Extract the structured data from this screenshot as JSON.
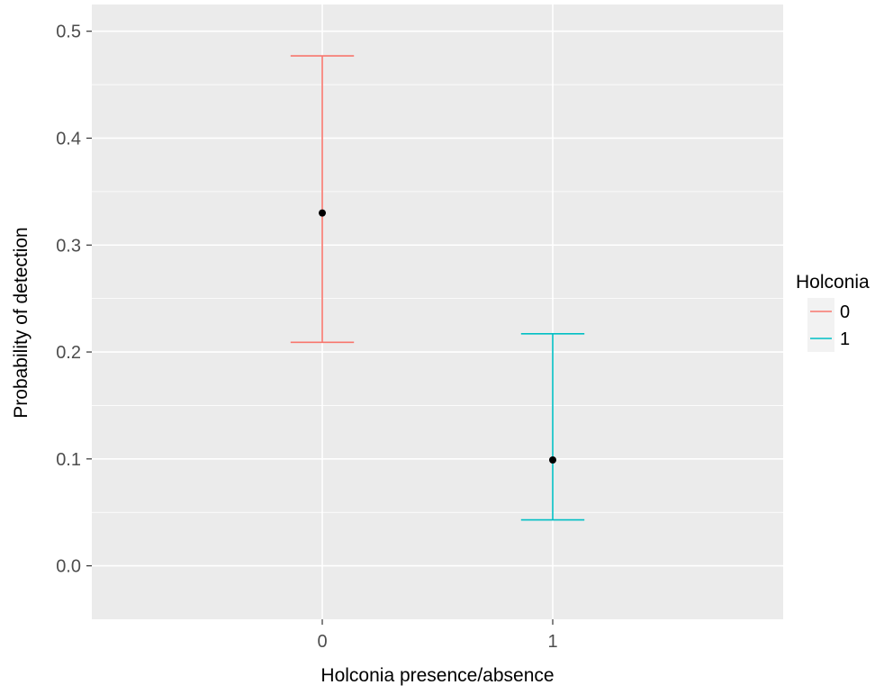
{
  "chart_data": {
    "type": "errorbar",
    "title": "",
    "xlabel": "Holconia presence/absence",
    "ylabel": "Probability of detection",
    "categories": [
      "0",
      "1"
    ],
    "ylim": [
      -0.05,
      0.525
    ],
    "yticks": [
      "0.0",
      "0.1",
      "0.2",
      "0.3",
      "0.4",
      "0.5"
    ],
    "grid": true,
    "series": [
      {
        "category": "0",
        "estimate": 0.33,
        "lower": 0.209,
        "upper": 0.477,
        "color": "#F8766D"
      },
      {
        "category": "1",
        "estimate": 0.099,
        "lower": 0.043,
        "upper": 0.217,
        "color": "#00BFC4"
      }
    ],
    "point_color": "#000000",
    "panel_background": "#EBEBEB",
    "gridline_color": "#FFFFFF",
    "legend": {
      "title": "Holconia",
      "placement": "right",
      "entries": [
        {
          "label": "0",
          "color": "#F8766D"
        },
        {
          "label": "1",
          "color": "#00BFC4"
        }
      ]
    }
  }
}
